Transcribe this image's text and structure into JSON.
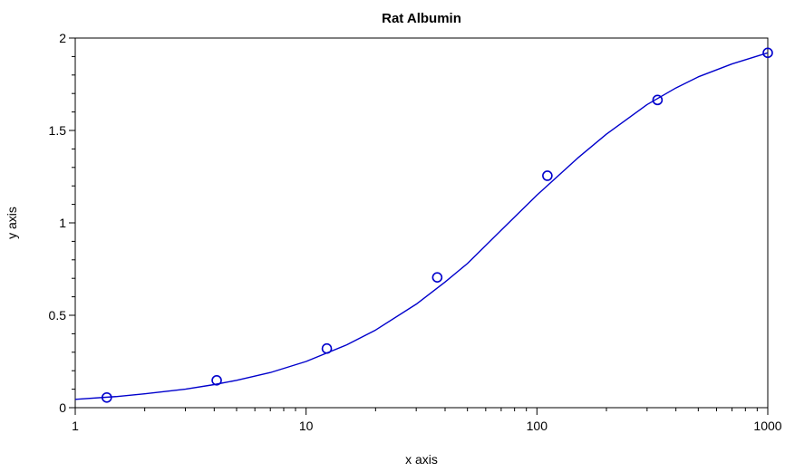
{
  "chart_data": {
    "type": "scatter",
    "title": "Rat Albumin",
    "xlabel": "x axis",
    "ylabel": "y axis",
    "x_scale": "log",
    "xlim": [
      1,
      1000
    ],
    "ylim": [
      0,
      2
    ],
    "x_ticks": [
      1,
      10,
      100,
      1000
    ],
    "x_tick_labels": [
      "1",
      "10",
      "100",
      "1000"
    ],
    "y_ticks": [
      0,
      0.5,
      1,
      1.5,
      2
    ],
    "y_tick_labels": [
      "0",
      "0.5",
      "1",
      "1.5",
      "2"
    ],
    "grid": false,
    "series": [
      {
        "kind": "points",
        "marker": "open-circle",
        "color": "#0000cc",
        "x": [
          1.37,
          4.1,
          12.3,
          37,
          111,
          333,
          1000
        ],
        "y": [
          0.055,
          0.148,
          0.32,
          0.705,
          1.255,
          1.665,
          1.92
        ]
      },
      {
        "kind": "fit-curve",
        "color": "#0000cc",
        "x": [
          1,
          1.5,
          2,
          3,
          4,
          5,
          7,
          10,
          15,
          20,
          30,
          40,
          50,
          70,
          100,
          150,
          200,
          300,
          400,
          500,
          700,
          1000
        ],
        "y": [
          0.045,
          0.06,
          0.075,
          0.1,
          0.125,
          0.148,
          0.19,
          0.25,
          0.34,
          0.42,
          0.56,
          0.68,
          0.78,
          0.96,
          1.15,
          1.35,
          1.48,
          1.64,
          1.73,
          1.79,
          1.86,
          1.92
        ]
      }
    ]
  }
}
